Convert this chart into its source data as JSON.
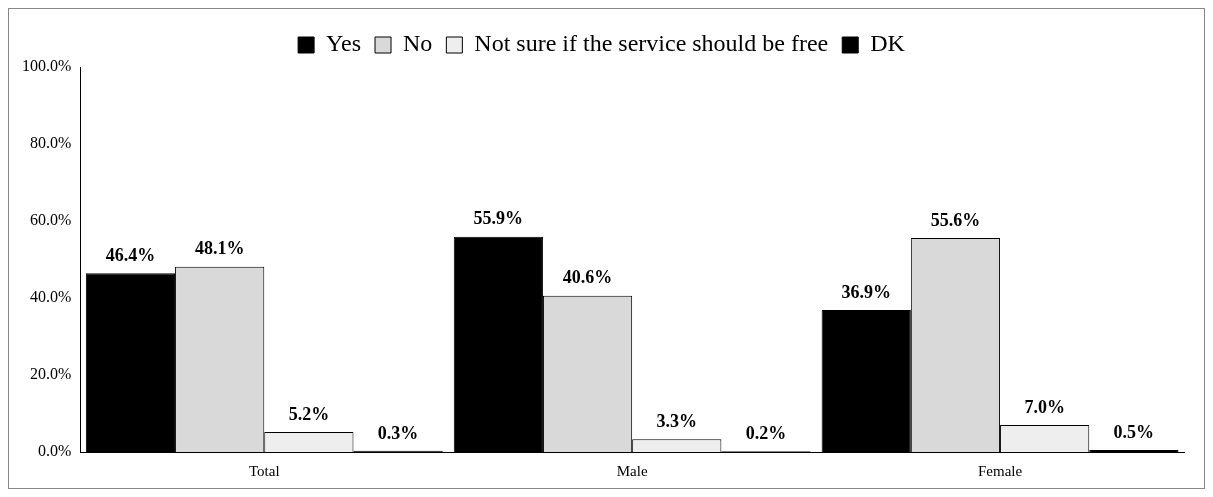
{
  "chart_data": {
    "type": "bar",
    "categories": [
      "Total",
      "Male",
      "Female"
    ],
    "series": [
      {
        "name": "Yes",
        "color": "#000000",
        "values": [
          46.4,
          55.9,
          36.9
        ],
        "value_labels": [
          "46.4%",
          "55.9%",
          "36.9%"
        ]
      },
      {
        "name": "No",
        "color": "#d9d9d9",
        "values": [
          48.1,
          40.6,
          55.6
        ],
        "value_labels": [
          "48.1%",
          "40.6%",
          "55.6%"
        ]
      },
      {
        "name": "Not sure if the service should be free",
        "color": "#eeeeee",
        "values": [
          5.2,
          3.3,
          7.0
        ],
        "value_labels": [
          "5.2%",
          "3.3%",
          "7.0%"
        ]
      },
      {
        "name": "DK",
        "color": "#000000",
        "values": [
          0.3,
          0.2,
          0.5
        ],
        "value_labels": [
          "0.3%",
          "0.2%",
          "0.5%"
        ]
      }
    ],
    "ylim": [
      0,
      100
    ],
    "yticks": [
      {
        "value": 0,
        "label": "0.0%"
      },
      {
        "value": 20,
        "label": "20.0%"
      },
      {
        "value": 40,
        "label": "40.0%"
      },
      {
        "value": 60,
        "label": "60.0%"
      },
      {
        "value": 80,
        "label": "80.0%"
      },
      {
        "value": 100,
        "label": "100.0%"
      }
    ],
    "grid": false,
    "legend": "top"
  }
}
